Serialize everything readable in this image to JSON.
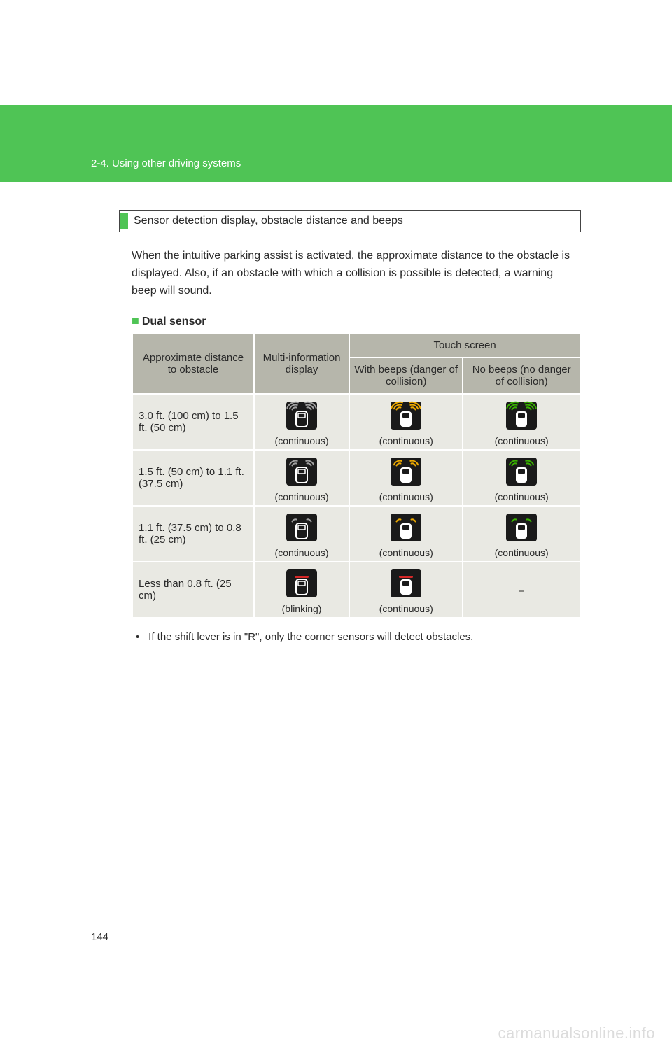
{
  "header": {
    "section_label": "2-4. Using other driving systems"
  },
  "section": {
    "title": "Sensor detection display, obstacle distance and beeps"
  },
  "intro": "When the intuitive parking assist is activated, the approximate distance to the obstacle is displayed. Also, if an obstacle with which a collision is possible is detected, a warning beep will sound.",
  "subhead": "Dual sensor",
  "table": {
    "colors": {
      "header_bg": "#b6b6ab",
      "cell_bg": "#e9e9e3",
      "border": "#ffffff",
      "icon_dark": "#1a1a1a",
      "icon_white": "#ffffff",
      "arc_green": "#38b000",
      "arc_amber": "#eeaa00",
      "arc_red": "#d62828",
      "arc_gray": "#a0a0a0"
    },
    "headers": {
      "col1": "Approximate distance to obstacle",
      "col2": "Multi-information display",
      "col3_top": "Touch screen",
      "col3a": "With beeps (danger of collision)",
      "col3b": "No beeps (no danger of collision)"
    },
    "rows": [
      {
        "distance": "3.0 ft. (100 cm) to 1.5 ft. (50 cm)",
        "multi": {
          "style": "black",
          "arcs": 3,
          "arc_color": "#a0a0a0",
          "caption": "(continuous)"
        },
        "beeps": {
          "style": "white",
          "arcs": 3,
          "arc_color": "#eeaa00",
          "caption": "(continuous)"
        },
        "nobeep": {
          "style": "white",
          "arcs": 3,
          "arc_color": "#38b000",
          "caption": "(continuous)"
        }
      },
      {
        "distance": "1.5 ft. (50 cm) to 1.1 ft. (37.5 cm)",
        "multi": {
          "style": "black",
          "arcs": 2,
          "arc_color": "#a0a0a0",
          "caption": "(continuous)"
        },
        "beeps": {
          "style": "white",
          "arcs": 2,
          "arc_color": "#eeaa00",
          "caption": "(continuous)"
        },
        "nobeep": {
          "style": "white",
          "arcs": 2,
          "arc_color": "#38b000",
          "caption": "(continuous)"
        }
      },
      {
        "distance": "1.1 ft. (37.5 cm) to 0.8 ft. (25 cm)",
        "multi": {
          "style": "black",
          "arcs": 1,
          "arc_color": "#a0a0a0",
          "caption": "(continuous)"
        },
        "beeps": {
          "style": "white",
          "arcs": 1,
          "arc_color": "#eeaa00",
          "caption": "(continuous)"
        },
        "nobeep": {
          "style": "white",
          "arcs": 1,
          "arc_color": "#38b000",
          "caption": "(continuous)"
        }
      },
      {
        "distance": "Less than 0.8 ft. (25 cm)",
        "multi": {
          "style": "black",
          "arcs": 0,
          "arc_color": "#d62828",
          "bar": true,
          "caption": "(blinking)"
        },
        "beeps": {
          "style": "white",
          "arcs": 0,
          "arc_color": "#d62828",
          "bar": true,
          "caption": "(continuous)"
        },
        "nobeep": {
          "dash": true
        }
      }
    ]
  },
  "note": "If the shift lever is in \"R\", only the corner sensors will detect obstacles.",
  "page_number": "144",
  "watermark": "carmanualsonline.info"
}
